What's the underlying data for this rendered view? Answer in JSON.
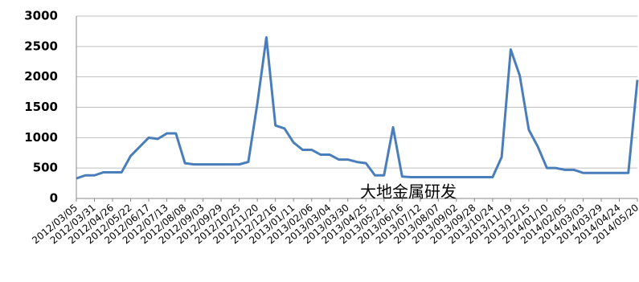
{
  "chart_data": {
    "type": "line",
    "categories": [
      "2012/03/05",
      null,
      "2012/03/31",
      null,
      "2012/04/26",
      null,
      "2012/05/22",
      null,
      "2012/06/17",
      null,
      "2012/07/13",
      null,
      "2012/08/08",
      null,
      "2012/09/03",
      null,
      "2012/09/29",
      null,
      "2012/10/25",
      null,
      "2012/11/20",
      null,
      "2012/12/16",
      null,
      "2013/01/11",
      null,
      "2013/02/06",
      null,
      "2013/03/04",
      null,
      "2013/03/30",
      null,
      "2013/04/25",
      null,
      "2013/05/21",
      null,
      "2013/06/16",
      null,
      "2013/07/12",
      null,
      "2013/08/07",
      null,
      "2013/09/02",
      null,
      "2013/09/28",
      null,
      "2013/10/24",
      null,
      "2013/11/19",
      null,
      "2013/12/15",
      null,
      "2014/01/10",
      null,
      "2014/02/05",
      null,
      "2014/03/03",
      null,
      "2014/03/29",
      null,
      "2014/04/24",
      null,
      "2014/05/20"
    ],
    "series": [
      {
        "color": "#4a7ebb",
        "values": [
          330,
          380,
          380,
          430,
          430,
          430,
          700,
          850,
          1000,
          980,
          1070,
          1070,
          580,
          560,
          560,
          560,
          560,
          560,
          560,
          600,
          1560,
          2650,
          1200,
          1150,
          920,
          800,
          800,
          720,
          720,
          640,
          640,
          600,
          580,
          380,
          380,
          1170,
          360,
          350,
          350,
          350,
          350,
          350,
          350,
          350,
          350,
          350,
          350,
          680,
          2450,
          2020,
          1130,
          850,
          500,
          500,
          470,
          470,
          420,
          420,
          420,
          420,
          420,
          420,
          1950
        ]
      }
    ],
    "ylim": [
      0,
      3000
    ],
    "yticks": [
      0,
      500,
      1000,
      1500,
      2000,
      2500,
      3000
    ],
    "grid": true,
    "annotation": "大地金属研发"
  }
}
